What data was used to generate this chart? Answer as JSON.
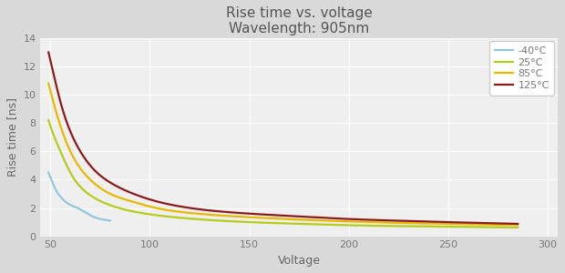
{
  "title": "Rise time vs. voltage",
  "subtitle": "Wavelength: 905nm",
  "xlabel": "Voltage",
  "ylabel": "Rise time [ns]",
  "xlim": [
    45,
    305
  ],
  "ylim": [
    0,
    14
  ],
  "xticks": [
    50,
    100,
    150,
    200,
    250,
    300
  ],
  "yticks": [
    0,
    2,
    4,
    6,
    8,
    10,
    12,
    14
  ],
  "background_color": "#d9d9d9",
  "plot_background_color": "#efefef",
  "grid_color": "#ffffff",
  "series": [
    {
      "label": "-40°C",
      "color": "#92c5de",
      "x": [
        49,
        51,
        53,
        55,
        57,
        59,
        61,
        63,
        65,
        68,
        72,
        76,
        80
      ],
      "y": [
        4.5,
        3.8,
        3.2,
        2.8,
        2.5,
        2.3,
        2.15,
        2.05,
        1.9,
        1.65,
        1.35,
        1.2,
        1.1
      ]
    },
    {
      "label": "25°C",
      "color": "#b5cc18",
      "x": [
        49,
        52,
        55,
        60,
        65,
        70,
        80,
        90,
        100,
        120,
        150,
        175,
        200,
        225,
        250,
        285
      ],
      "y": [
        8.2,
        7.0,
        6.0,
        4.5,
        3.5,
        2.9,
        2.2,
        1.8,
        1.55,
        1.25,
        1.0,
        0.88,
        0.78,
        0.72,
        0.68,
        0.62
      ]
    },
    {
      "label": "85°C",
      "color": "#e8b800",
      "x": [
        49,
        52,
        55,
        60,
        65,
        70,
        80,
        90,
        100,
        120,
        150,
        175,
        200,
        225,
        250,
        285
      ],
      "y": [
        10.8,
        9.2,
        7.8,
        6.0,
        4.8,
        4.0,
        3.0,
        2.5,
        2.1,
        1.65,
        1.35,
        1.18,
        1.05,
        0.95,
        0.88,
        0.8
      ]
    },
    {
      "label": "125°C",
      "color": "#8b1a1a",
      "x": [
        49,
        52,
        55,
        60,
        65,
        70,
        80,
        90,
        100,
        120,
        150,
        175,
        200,
        225,
        250,
        285
      ],
      "y": [
        13.0,
        11.2,
        9.5,
        7.4,
        6.0,
        5.0,
        3.8,
        3.1,
        2.6,
        2.0,
        1.6,
        1.4,
        1.22,
        1.1,
        1.0,
        0.88
      ]
    }
  ],
  "title_fontsize": 11,
  "subtitle_fontsize": 9,
  "axis_label_fontsize": 9,
  "tick_fontsize": 8,
  "legend_fontsize": 8,
  "title_color": "#555555",
  "axis_label_color": "#666666",
  "tick_color": "#777777"
}
